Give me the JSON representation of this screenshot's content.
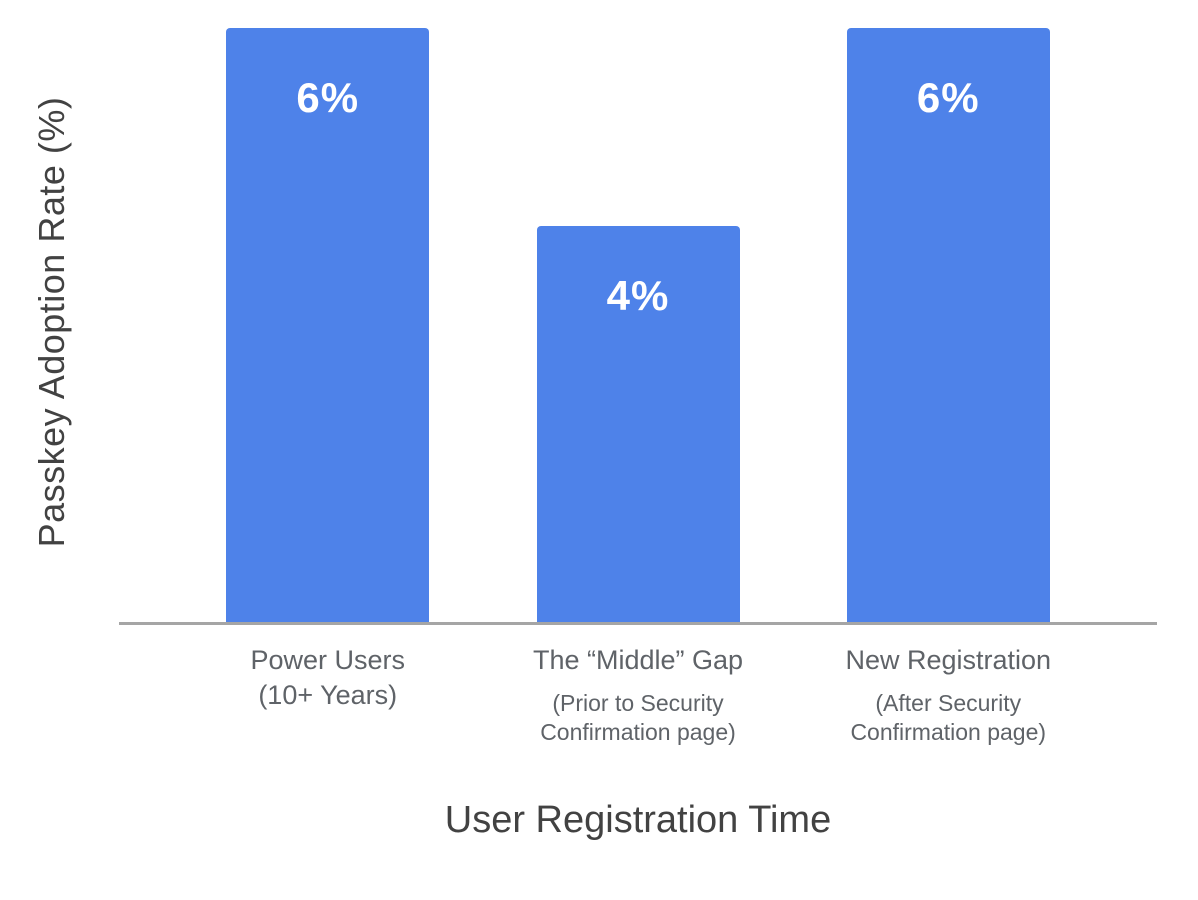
{
  "chart_data": {
    "type": "bar",
    "title": "",
    "xlabel": "User Registration Time",
    "ylabel": "Passkey Adoption Rate (%)",
    "ylim": [
      0,
      6.28
    ],
    "grid": false,
    "legend": false,
    "categories": [
      "Power Users (10+ Years)",
      "The “Middle” Gap (Prior to Security Confirmation page)",
      "New Registration (After Security Confirmation page)"
    ],
    "values": [
      6,
      4,
      6
    ],
    "colors": {
      "bar": "#4e82e9",
      "value_label": "#ffffff",
      "axis_line": "#a5a5a5",
      "tick_label": "#5f6368",
      "axis_title": "#424242"
    },
    "bars": [
      {
        "value": 6,
        "value_label": "6%",
        "label_lines": [
          "Power Users",
          "(10+ Years)"
        ],
        "label_small_lines": []
      },
      {
        "value": 4,
        "value_label": "4%",
        "label_lines": [
          "The “Middle” Gap"
        ],
        "label_small_lines": [
          "(Prior to Security",
          "Confirmation page)"
        ]
      },
      {
        "value": 6,
        "value_label": "6%",
        "label_lines": [
          "New Registration"
        ],
        "label_small_lines": [
          "(After Security",
          "Confirmation page)"
        ]
      }
    ]
  }
}
